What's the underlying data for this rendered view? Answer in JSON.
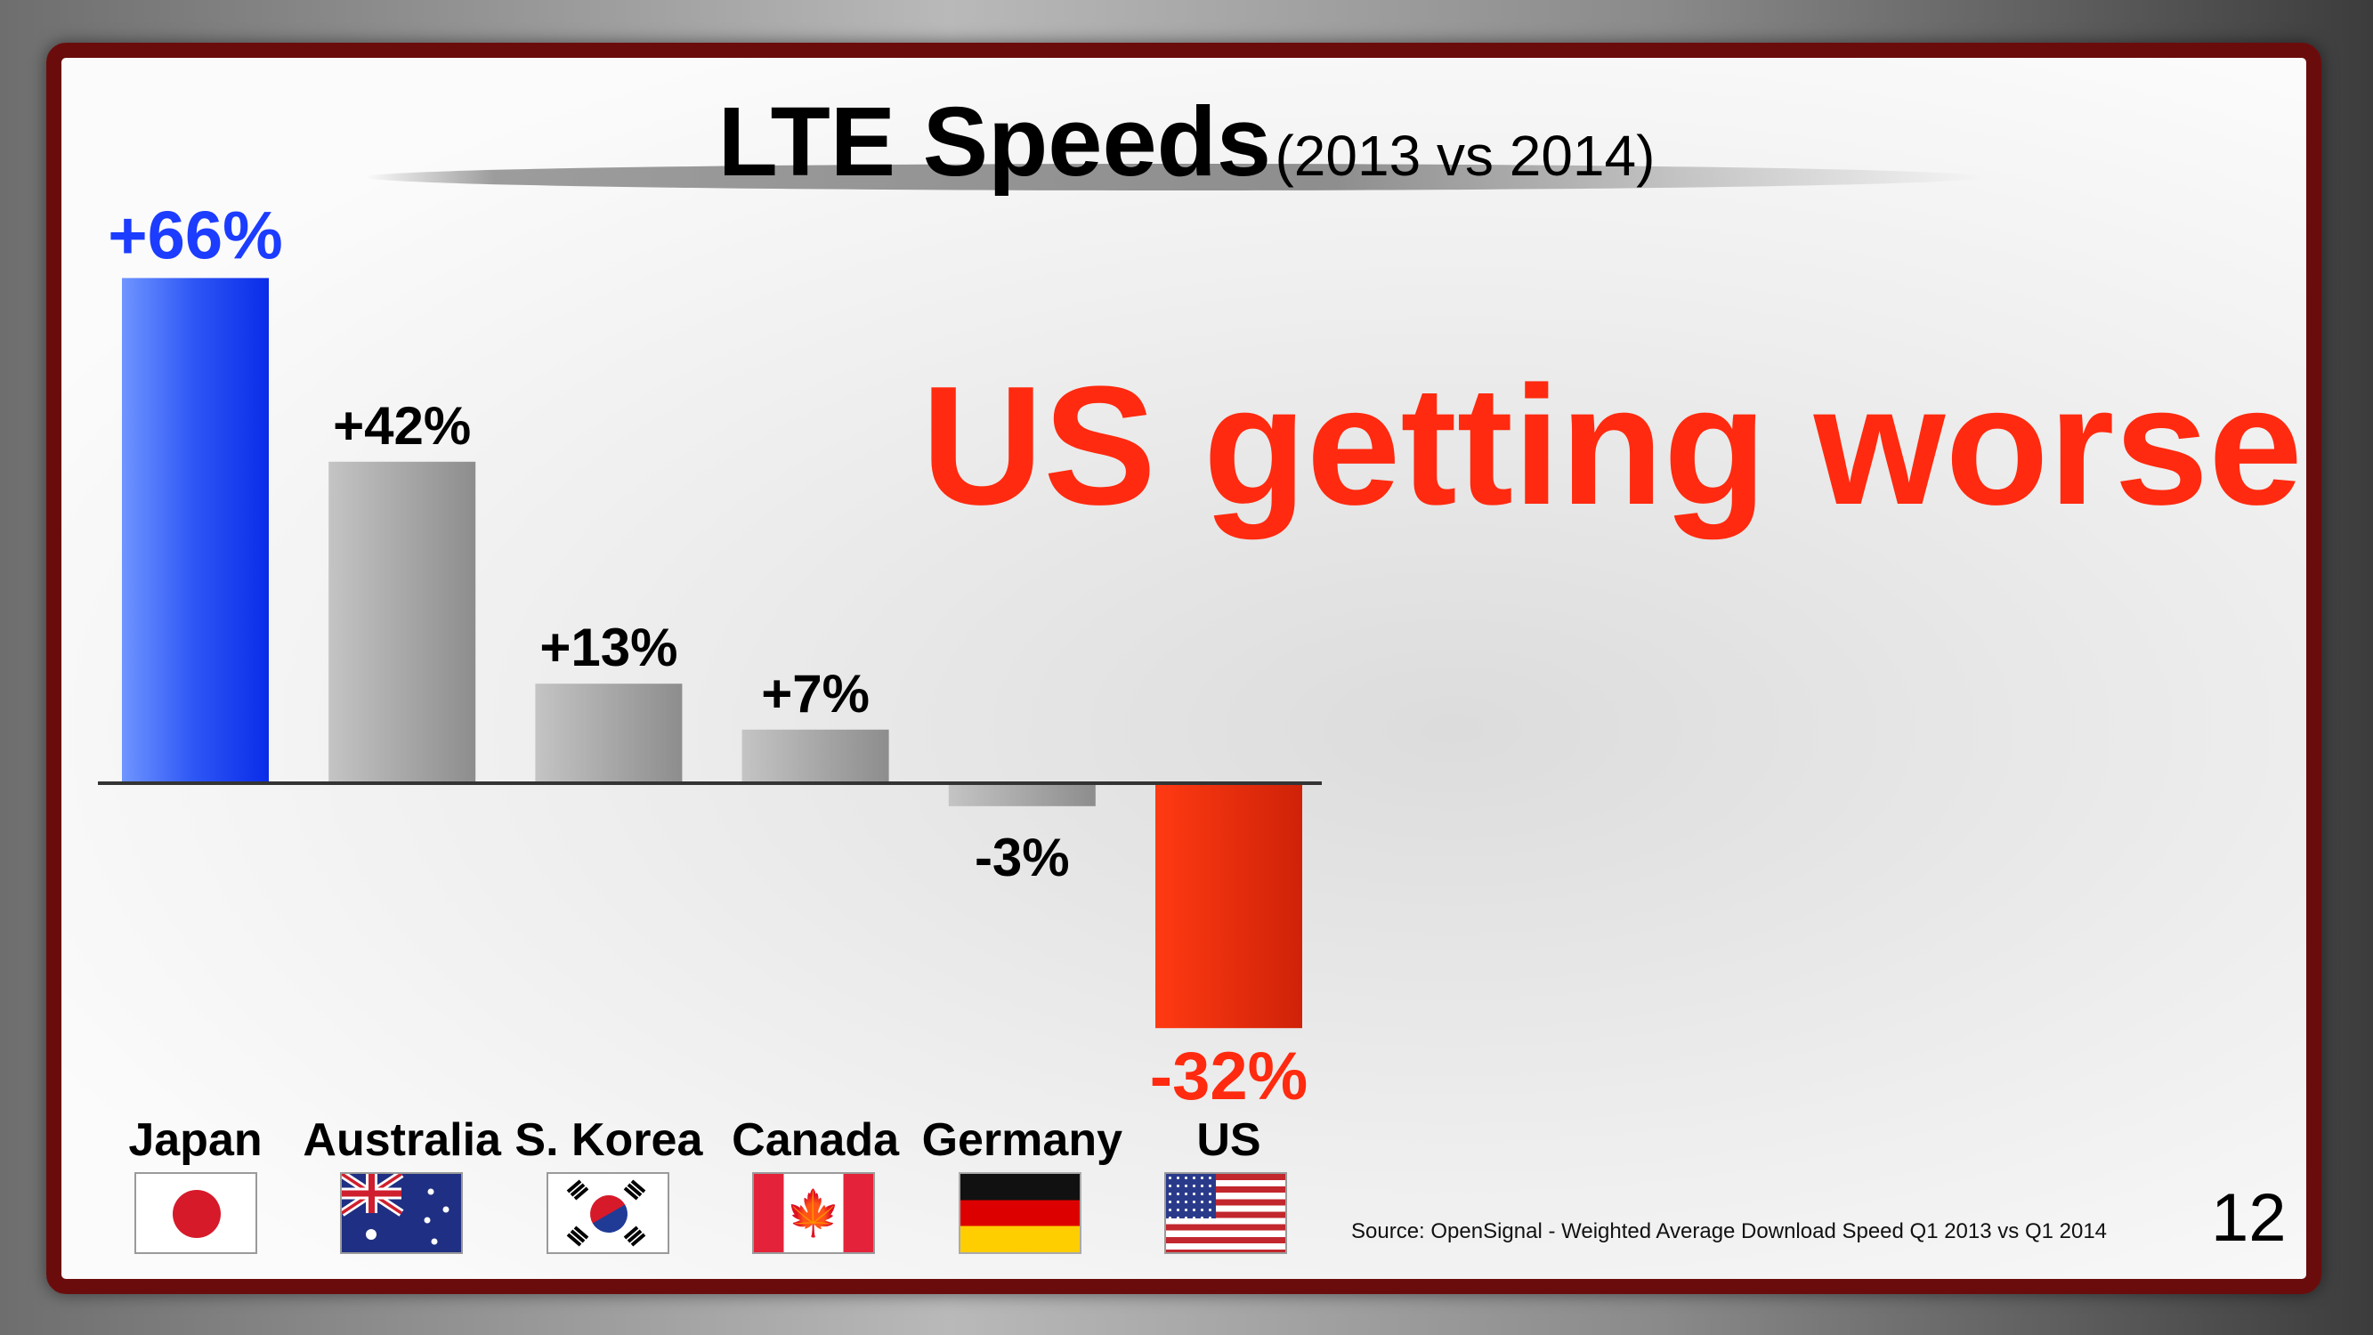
{
  "slide": {
    "title": "LTE Speeds",
    "title_sub": "(2013 vs 2014)",
    "headline": "US getting worse",
    "source": "Source: OpenSignal - Weighted Average Download Speed Q1 2013 vs Q1 2014",
    "page_number": "12"
  },
  "colors": {
    "highlight_positive": "#1c3cff",
    "highlight_negative": "#ff2a0f",
    "neutral_bar": "#a8a8a8",
    "frame": "#6b0c0c"
  },
  "flags": [
    {
      "country": "Japan",
      "icon": "japan-flag-icon"
    },
    {
      "country": "Australia",
      "icon": "australia-flag-icon"
    },
    {
      "country": "S. Korea",
      "icon": "south-korea-flag-icon"
    },
    {
      "country": "Canada",
      "icon": "canada-flag-icon"
    },
    {
      "country": "Germany",
      "icon": "germany-flag-icon"
    },
    {
      "country": "US",
      "icon": "us-flag-icon"
    }
  ],
  "chart_data": {
    "type": "bar",
    "title": "LTE Speeds",
    "subtitle": "(2013 vs 2014)",
    "categories": [
      "Japan",
      "Australia",
      "S. Korea",
      "Canada",
      "Germany",
      "US"
    ],
    "values": [
      66,
      42,
      13,
      7,
      -3,
      -32
    ],
    "value_labels": [
      "+66%",
      "+42%",
      "+13%",
      "+7%",
      "-3%",
      "-32%"
    ],
    "unit": "%",
    "highlight": {
      "Japan": "#1c3cff",
      "US": "#ff2a0f"
    },
    "grid": false,
    "legend": "none",
    "ylim": [
      -32,
      66
    ]
  }
}
